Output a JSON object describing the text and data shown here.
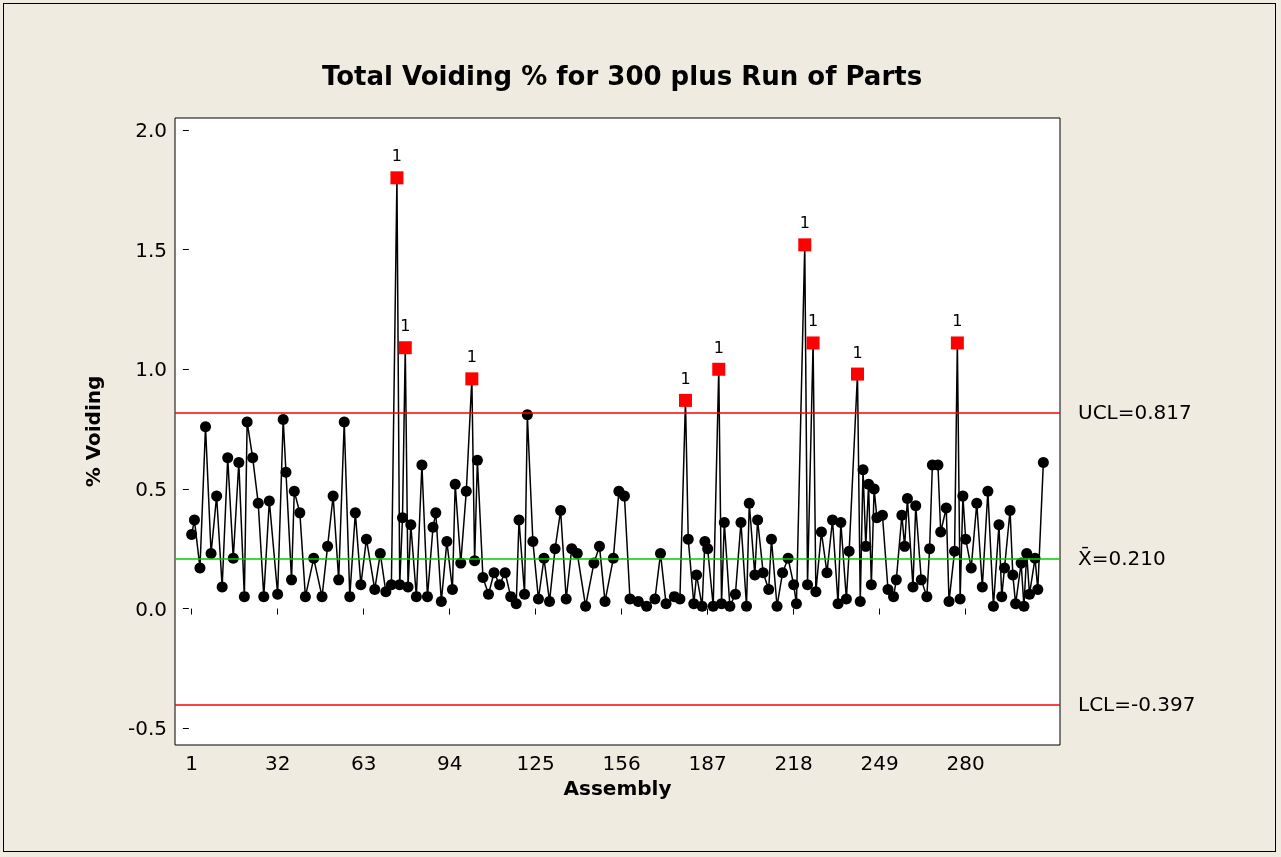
{
  "chart_data": {
    "type": "line",
    "title": "Total Voiding % for 300 plus Run of Parts",
    "xlabel": "Assembly",
    "ylabel": "% Voiding",
    "xlim": [
      -5,
      314
    ],
    "xticks": [
      1,
      32,
      63,
      94,
      125,
      156,
      187,
      218,
      249,
      280
    ],
    "ylim": [
      -0.57,
      2.05
    ],
    "yticks": [
      {
        "value": -0.5,
        "label": "-0.5"
      },
      {
        "value": 0,
        "label": "0.0"
      },
      {
        "value": 0.5,
        "label": "0.5"
      },
      {
        "value": 1,
        "label": "1.0"
      },
      {
        "value": 1.5,
        "label": "1.5"
      },
      {
        "value": 2,
        "label": "2.0"
      }
    ],
    "marker": "circle",
    "line_style": "solid",
    "series": [
      {
        "color": "#000000",
        "x": [
          1,
          2,
          4,
          6,
          8,
          10,
          12,
          14,
          16,
          18,
          20,
          21,
          23,
          25,
          27,
          29,
          32,
          34,
          35,
          37,
          38,
          40,
          42,
          45,
          48,
          50,
          52,
          54,
          56,
          58,
          60,
          62,
          64,
          67,
          69,
          71,
          73,
          75,
          76,
          77,
          78,
          79,
          80,
          82,
          84,
          86,
          88,
          89,
          91,
          93,
          95,
          96,
          98,
          100,
          102,
          103,
          104,
          106,
          108,
          110,
          112,
          114,
          116,
          118,
          119,
          121,
          122,
          124,
          126,
          128,
          130,
          132,
          134,
          136,
          138,
          140,
          143,
          146,
          148,
          150,
          153,
          155,
          157,
          159,
          162,
          165,
          168,
          170,
          172,
          175,
          177,
          179,
          180,
          182,
          183,
          185,
          186,
          187,
          189,
          191,
          192,
          193,
          195,
          197,
          199,
          201,
          202,
          204,
          205,
          207,
          209,
          210,
          212,
          214,
          216,
          218,
          219,
          222,
          223,
          225,
          226,
          228,
          230,
          232,
          234,
          235,
          237,
          238,
          241,
          242,
          243,
          244,
          245,
          246,
          247,
          248,
          250,
          252,
          254,
          255,
          257,
          258,
          259,
          261,
          262,
          264,
          266,
          267,
          268,
          270,
          271,
          273,
          274,
          276,
          277,
          278,
          279,
          280,
          282,
          284,
          286,
          288,
          290,
          292,
          293,
          294,
          296,
          297,
          298,
          300,
          301,
          302,
          303,
          305,
          306,
          308
        ],
        "values": [
          0.31,
          0.37,
          0.17,
          0.76,
          0.23,
          0.47,
          0.09,
          0.63,
          0.21,
          0.61,
          0.05,
          0.78,
          0.63,
          0.44,
          0.05,
          0.45,
          0.06,
          0.79,
          0.57,
          0.12,
          0.49,
          0.4,
          0.05,
          0.21,
          0.05,
          0.26,
          0.47,
          0.12,
          0.78,
          0.05,
          0.4,
          0.1,
          0.29,
          0.08,
          0.23,
          0.07,
          0.1,
          1.8,
          0.1,
          0.38,
          1.09,
          0.09,
          0.35,
          0.05,
          0.6,
          0.05,
          0.34,
          0.4,
          0.03,
          0.28,
          0.08,
          0.52,
          0.19,
          0.49,
          0.96,
          0.2,
          0.62,
          0.13,
          0.06,
          0.15,
          0.1,
          0.15,
          0.05,
          0.02,
          0.37,
          0.06,
          0.81,
          0.28,
          0.04,
          0.21,
          0.03,
          0.25,
          0.41,
          0.04,
          0.25,
          0.23,
          0.01,
          0.19,
          0.26,
          0.03,
          0.21,
          0.49,
          0.47,
          0.04,
          0.03,
          0.01,
          0.04,
          0.23,
          0.02,
          0.05,
          0.04,
          0.87,
          0.29,
          0.02,
          0.14,
          0.01,
          0.28,
          0.25,
          0.01,
          1.0,
          0.02,
          0.36,
          0.01,
          0.06,
          0.36,
          0.01,
          0.44,
          0.14,
          0.37,
          0.15,
          0.08,
          0.29,
          0.01,
          0.15,
          0.21,
          0.1,
          0.02,
          1.52,
          0.1,
          1.11,
          0.07,
          0.32,
          0.15,
          0.37,
          0.02,
          0.36,
          0.04,
          0.24,
          0.98,
          0.03,
          0.58,
          0.26,
          0.52,
          0.1,
          0.5,
          0.38,
          0.39,
          0.08,
          0.05,
          0.12,
          0.39,
          0.26,
          0.46,
          0.09,
          0.43,
          0.12,
          0.05,
          0.25,
          0.6,
          0.6,
          0.32,
          0.42,
          0.03,
          0.24,
          1.11,
          0.04,
          0.47,
          0.29,
          0.17,
          0.44,
          0.09,
          0.49,
          0.01,
          0.35,
          0.05,
          0.17,
          0.41,
          0.14,
          0.02,
          0.19,
          0.01,
          0.23,
          0.06,
          0.21,
          0.08,
          0.61
        ],
        "colors": [
          "#000000",
          "#000000",
          "#000000",
          "#000000",
          "#000000",
          "#000000",
          "#000000",
          "#000000",
          "#000000",
          "#000000",
          "#000000",
          "#000000",
          "#000000",
          "#000000",
          "#000000",
          "#000000",
          "#000000",
          "#000000",
          "#000000",
          "#000000",
          "#000000",
          "#000000",
          "#000000",
          "#000000",
          "#000000",
          "#000000",
          "#000000",
          "#000000",
          "#000000",
          "#000000",
          "#000000",
          "#000000",
          "#000000",
          "#000000",
          "#000000",
          "#000000",
          "#000000",
          "#ff0000",
          "#000000",
          "#000000",
          "#ff0000",
          "#000000",
          "#000000",
          "#000000",
          "#000000",
          "#000000",
          "#000000",
          "#000000",
          "#000000",
          "#000000",
          "#000000",
          "#000000",
          "#000000",
          "#000000",
          "#ff0000",
          "#000000",
          "#000000",
          "#000000",
          "#000000",
          "#000000",
          "#000000",
          "#000000",
          "#000000",
          "#000000",
          "#000000",
          "#000000",
          "#000000",
          "#000000",
          "#000000",
          "#000000",
          "#000000",
          "#000000",
          "#000000",
          "#000000",
          "#000000",
          "#000000",
          "#000000",
          "#000000",
          "#000000",
          "#000000",
          "#000000",
          "#000000",
          "#000000",
          "#000000",
          "#000000",
          "#000000",
          "#000000",
          "#000000",
          "#000000",
          "#000000",
          "#000000",
          "#ff0000",
          "#000000",
          "#000000",
          "#000000",
          "#000000",
          "#000000",
          "#000000",
          "#000000",
          "#ff0000",
          "#000000",
          "#000000",
          "#000000",
          "#000000",
          "#000000",
          "#000000",
          "#000000",
          "#000000",
          "#000000",
          "#000000",
          "#000000",
          "#000000",
          "#000000",
          "#000000",
          "#000000",
          "#000000",
          "#000000",
          "#ff0000",
          "#000000",
          "#ff0000",
          "#000000",
          "#000000",
          "#000000",
          "#000000",
          "#000000",
          "#000000",
          "#000000",
          "#000000",
          "#ff0000",
          "#000000",
          "#000000",
          "#000000",
          "#000000",
          "#000000",
          "#000000",
          "#000000",
          "#000000",
          "#000000",
          "#000000",
          "#000000",
          "#000000",
          "#000000",
          "#000000",
          "#000000",
          "#000000",
          "#000000",
          "#000000",
          "#000000",
          "#000000",
          "#000000",
          "#000000",
          "#000000",
          "#000000",
          "#000000",
          "#ff0000",
          "#000000",
          "#000000",
          "#000000",
          "#000000",
          "#000000",
          "#000000",
          "#000000",
          "#000000",
          "#000000",
          "#000000",
          "#000000",
          "#000000",
          "#000000",
          "#000000",
          "#000000",
          "#000000",
          "#000000",
          "#000000",
          "#000000",
          "#000000",
          "#000000"
        ]
      }
    ],
    "ref_lines": [
      {
        "axis": "y",
        "value": 0.817,
        "label": "UCL=0.817",
        "color": "#ff0000"
      },
      {
        "axis": "y",
        "value": 0.21,
        "label": "X̄=0.210",
        "color": "#00cc00"
      },
      {
        "axis": "y",
        "value": -0.397,
        "label": "LCL=-0.397",
        "color": "#ff0000"
      }
    ],
    "annotations": [
      {
        "text": "1",
        "x": 75,
        "y": 1.8
      },
      {
        "text": "1",
        "x": 78,
        "y": 1.09
      },
      {
        "text": "1",
        "x": 102,
        "y": 0.96
      },
      {
        "text": "1",
        "x": 179,
        "y": 0.87
      },
      {
        "text": "1",
        "x": 191,
        "y": 1.0
      },
      {
        "text": "1",
        "x": 222,
        "y": 1.52
      },
      {
        "text": "1",
        "x": 225,
        "y": 1.11
      },
      {
        "text": "1",
        "x": 241,
        "y": 0.98
      },
      {
        "text": "1",
        "x": 277,
        "y": 1.11
      }
    ]
  }
}
